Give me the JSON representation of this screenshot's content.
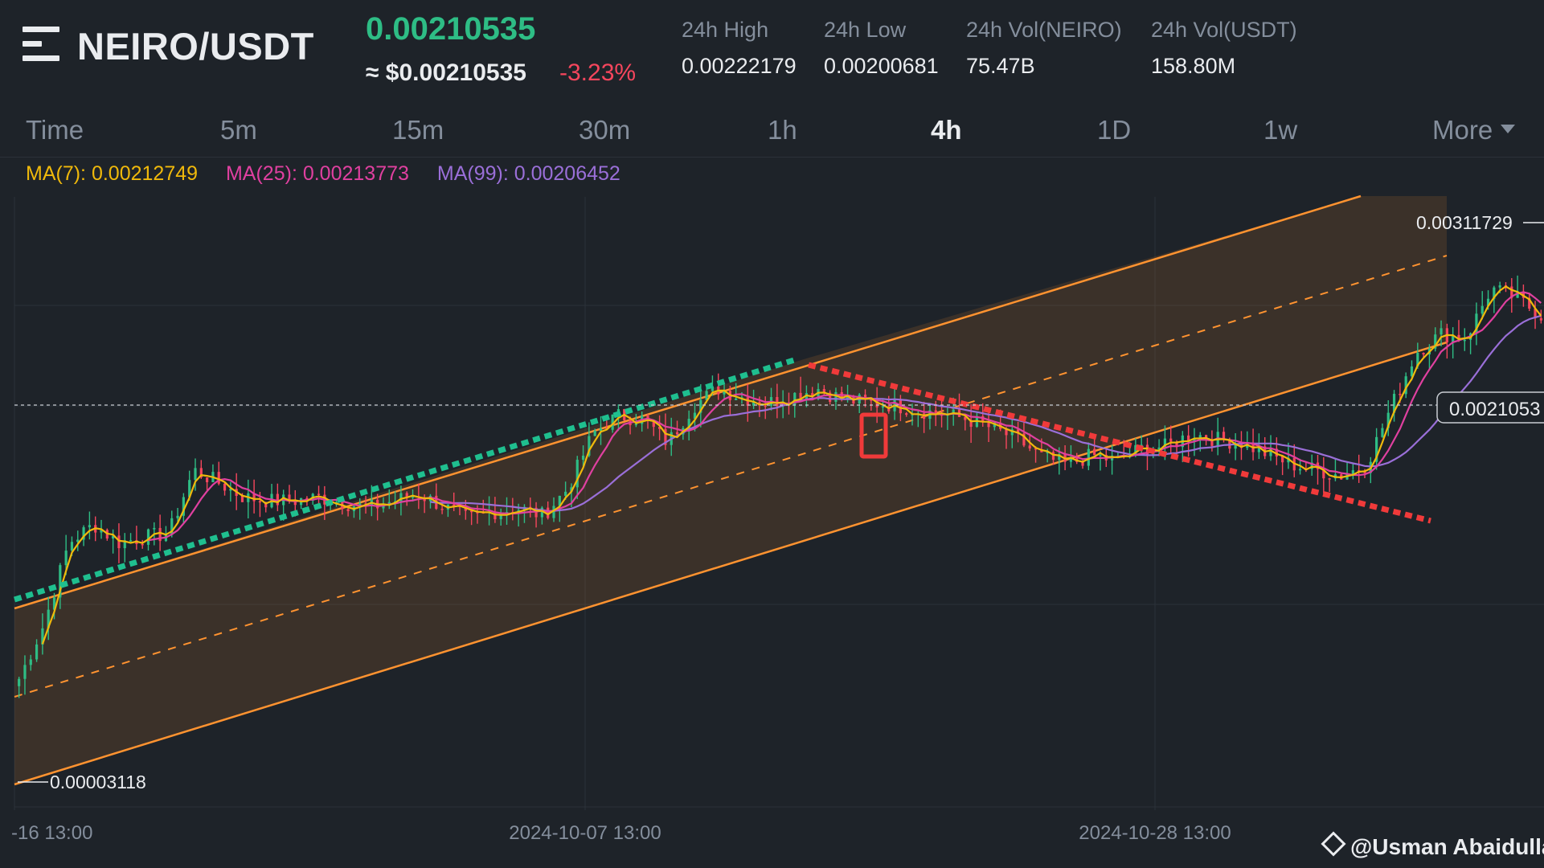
{
  "header": {
    "pair": "NEIRO/USDT",
    "last_price": "0.00210535",
    "usd_price": "≈ $0.00210535",
    "change": "-3.23%",
    "stats": [
      {
        "label": "24h High",
        "value": "0.00222179"
      },
      {
        "label": "24h Low",
        "value": "0.00200681"
      },
      {
        "label": "24h Vol(NEIRO)",
        "value": "75.47B"
      },
      {
        "label": "24h Vol(USDT)",
        "value": "158.80M"
      }
    ]
  },
  "timeframes": [
    "Time",
    "5m",
    "15m",
    "30m",
    "1h",
    "4h",
    "1D",
    "1w",
    "More"
  ],
  "active_timeframe": "4h",
  "indicators": {
    "ma7": "MA(7): 0.00212749",
    "ma25": "MA(25): 0.00213773",
    "ma99": "MA(99): 0.00206452"
  },
  "watermark": "@Usman Abaidullah",
  "colors": {
    "background": "#1e2329",
    "up": "#2ebd85",
    "down": "#f6465d",
    "ma7": "#f0b90b",
    "ma25": "#e040a0",
    "ma99": "#9a6fd8",
    "channel": "#ff9330",
    "support_line": "#1fbf8f",
    "resistance_line": "#f03a3a",
    "highlight_box": "#f03a3a"
  },
  "chart_data": {
    "type": "candlestick",
    "pair": "NEIRO/USDT",
    "interval": "4h",
    "x_tick_labels": [
      "-16 13:00",
      "2024-10-07 13:00",
      "2024-10-28 13:00"
    ],
    "price_labels": {
      "high_marker": "0.00311729",
      "low_marker": "0.00003118",
      "current_price": "0.0021053"
    },
    "ma_values": {
      "MA(7)": 0.00212749,
      "MA(25)": 0.00213773,
      "MA(99)": 0.00206452
    },
    "price_path": [
      0.0006,
      0.0009,
      0.00135,
      0.00145,
      0.00135,
      0.00138,
      0.0014,
      0.00175,
      0.00168,
      0.0016,
      0.00158,
      0.00158,
      0.0016,
      0.00157,
      0.00154,
      0.00158,
      0.00162,
      0.00155,
      0.00148,
      0.00152,
      0.00154,
      0.0015,
      0.00165,
      0.00195,
      0.00205,
      0.00203,
      0.0019,
      0.0021,
      0.0022,
      0.00215,
      0.00212,
      0.00216,
      0.0022,
      0.00214,
      0.00212,
      0.00211,
      0.00208,
      0.00206,
      0.00203,
      0.00198,
      0.00192,
      0.00182,
      0.00178,
      0.00183,
      0.0018,
      0.00187,
      0.00188,
      0.00195,
      0.00192,
      0.0019,
      0.00184,
      0.00178,
      0.00175,
      0.00172,
      0.00178,
      0.0021,
      0.0024,
      0.0025,
      0.00248,
      0.00275,
      0.0027,
      0.0026
    ],
    "drawings": {
      "ascending_channel": true,
      "channel_midline": "dashed",
      "support_trendline": "dashed green",
      "resistance_trendline": "dashed red",
      "current_price_line": "dashed white",
      "highlight_box": "red rectangle"
    }
  }
}
